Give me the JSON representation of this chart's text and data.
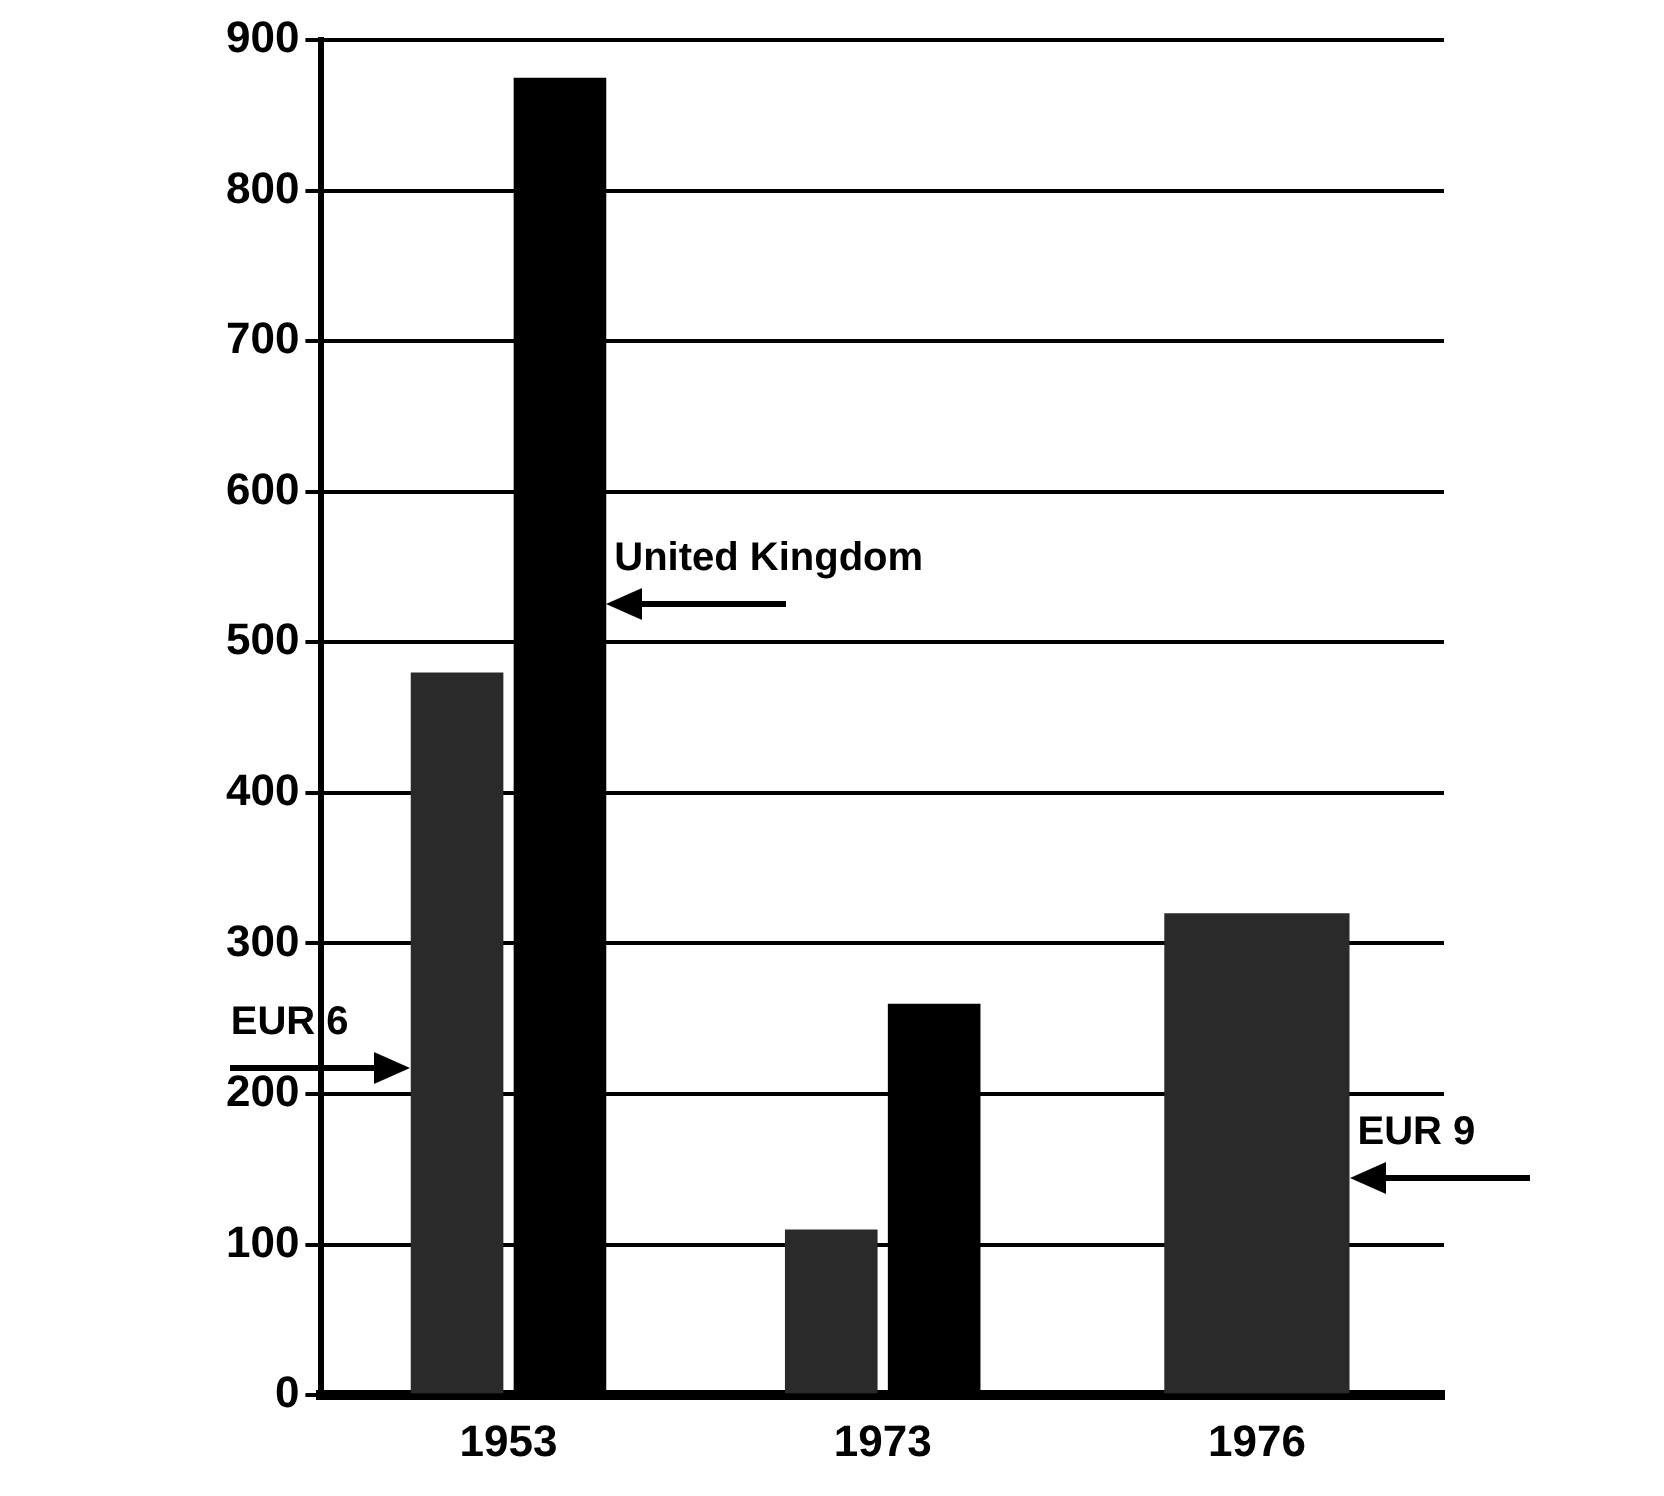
{
  "chart_data": {
    "type": "bar",
    "categories": [
      "1953",
      "1973",
      "1976"
    ],
    "series": [
      {
        "name": "EUR 6",
        "color": "#2a2a2a",
        "values": [
          480,
          110,
          null
        ]
      },
      {
        "name": "United Kingdom",
        "color": "#000000",
        "values": [
          875,
          260,
          null
        ]
      },
      {
        "name": "EUR 9",
        "color": "#2a2a2a",
        "values": [
          null,
          null,
          320
        ]
      }
    ],
    "ylim": [
      0,
      900
    ],
    "yticks": [
      0,
      100,
      200,
      300,
      400,
      500,
      600,
      700,
      800,
      900
    ],
    "grid": "y",
    "legend": false
  }
}
